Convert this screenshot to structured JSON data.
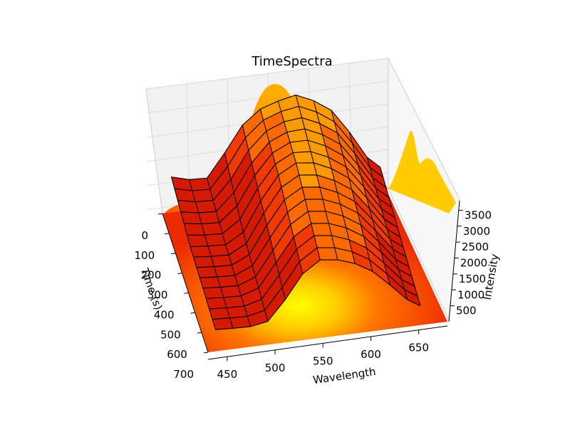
{
  "chart_data": {
    "type": "surface3d",
    "title": "TimeSpectra",
    "xlabel": "Wavelength",
    "ylabel": "Time (s)",
    "zlabel": "Intensity",
    "x_ticks": [
      "450",
      "500",
      "550",
      "600",
      "650"
    ],
    "y_ticks": [
      "0",
      "100",
      "200",
      "300",
      "400",
      "500",
      "600",
      "700"
    ],
    "z_ticks": [
      "500",
      "1000",
      "1500",
      "2000",
      "2500",
      "3000",
      "3500"
    ],
    "xlim": [
      430,
      680
    ],
    "ylim": [
      0,
      720
    ],
    "zlim": [
      0,
      3800
    ],
    "colormap": [
      "#cc1100",
      "#e02a00",
      "#ff4400",
      "#ff6600",
      "#ff8800",
      "#ffaa00",
      "#ffcc00",
      "#ffee00"
    ],
    "wireframe_color": "#000000",
    "series": [
      {
        "time": 0,
        "wavelength": [
          440,
          460,
          480,
          500,
          520,
          540,
          560,
          580,
          600,
          620,
          640,
          660,
          675
        ],
        "intensity": [
          900,
          780,
          760,
          1350,
          2000,
          2350,
          2500,
          2600,
          2400,
          2100,
          1500,
          800,
          500
        ]
      },
      {
        "time": 300,
        "wavelength": [
          440,
          460,
          480,
          500,
          520,
          540,
          560,
          580,
          600,
          620,
          640,
          660,
          675
        ],
        "intensity": [
          600,
          560,
          540,
          800,
          1550,
          2150,
          2400,
          2350,
          2150,
          1850,
          1300,
          700,
          450
        ]
      },
      {
        "time": 700,
        "wavelength": [
          440,
          460,
          480,
          500,
          520,
          540,
          560,
          580,
          600,
          620,
          640,
          660,
          675
        ],
        "intensity": [
          450,
          430,
          420,
          500,
          1000,
          1600,
          1900,
          1850,
          1700,
          1450,
          1050,
          620,
          420
        ]
      }
    ],
    "projection": {
      "wall": "back",
      "peak_wavelength": 550,
      "peak_intensity": 3600
    }
  }
}
